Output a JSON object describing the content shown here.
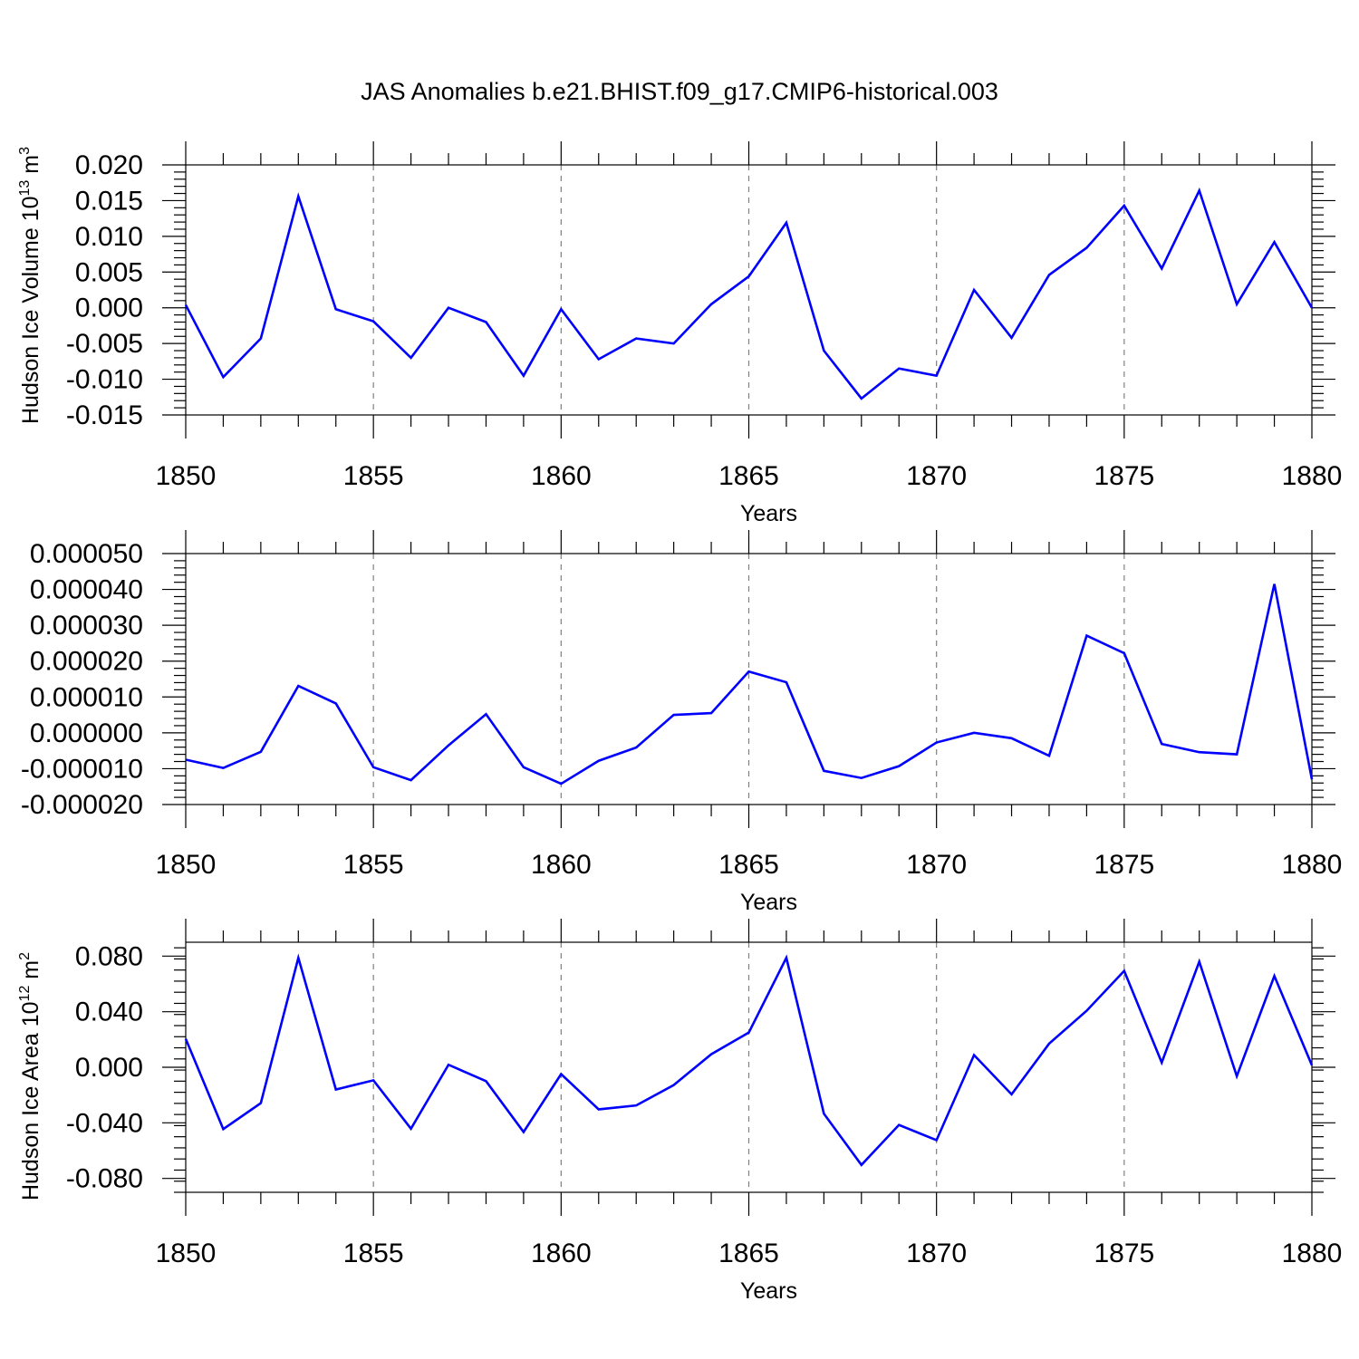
{
  "figure": {
    "title": "JAS Anomalies b.e21.BHIST.f09_g17.CMIP6-historical.003"
  },
  "colors": {
    "line": "#0000ff",
    "grid": "#808080",
    "frame": "#000000"
  },
  "chart_data": [
    {
      "type": "line",
      "title": "",
      "ylabel": {
        "main": "Hudson Ice Volume 10",
        "exp": "13",
        "unit": " m",
        "unit_exp": "3"
      },
      "xlabel": "Years",
      "xlim": [
        1850,
        1880
      ],
      "ylim": [
        -0.015,
        0.02
      ],
      "xticks": [
        1850,
        1855,
        1860,
        1865,
        1870,
        1875,
        1880
      ],
      "xtick_labels": [
        "1850",
        "1855",
        "1860",
        "1865",
        "1870",
        "1875",
        "1880"
      ],
      "yticks": [
        0.02,
        0.015,
        0.01,
        0.005,
        0.0,
        -0.005,
        -0.01,
        -0.015
      ],
      "ytick_labels": [
        "0.020",
        "0.015",
        "0.010",
        "0.005",
        "0.000",
        "-0.005",
        "-0.010",
        "-0.015"
      ],
      "grid": "vertical dashed at major x ticks",
      "series": [
        {
          "x": [
            1850,
            1851,
            1852,
            1853,
            1854,
            1855,
            1856,
            1857,
            1858,
            1859,
            1860,
            1861,
            1862,
            1863,
            1864,
            1865,
            1866,
            1867,
            1868,
            1869,
            1870,
            1871,
            1872,
            1873,
            1874,
            1875,
            1876,
            1877,
            1878,
            1879,
            1880
          ],
          "values": [
            0.0004,
            -0.0097,
            -0.0043,
            0.0156,
            -0.0002,
            -0.0019,
            -0.007,
            0.0,
            -0.002,
            -0.0095,
            -0.0002,
            -0.0072,
            -0.0043,
            -0.005,
            0.0005,
            0.0044,
            0.0119,
            -0.006,
            -0.0127,
            -0.0085,
            -0.0095,
            0.0025,
            -0.0042,
            0.0046,
            0.0084,
            0.0143,
            0.0055,
            0.0164,
            0.0005,
            0.0092,
            0.0
          ]
        }
      ]
    },
    {
      "type": "line",
      "title": "",
      "ylabel": {
        "main": "",
        "exp": "",
        "unit": "",
        "unit_exp": ""
      },
      "xlabel": "Years",
      "xlim": [
        1850,
        1880
      ],
      "ylim": [
        -2e-05,
        5e-05
      ],
      "xticks": [
        1850,
        1855,
        1860,
        1865,
        1870,
        1875,
        1880
      ],
      "xtick_labels": [
        "1850",
        "1855",
        "1860",
        "1865",
        "1870",
        "1875",
        "1880"
      ],
      "yticks": [
        5e-05,
        4e-05,
        3e-05,
        2e-05,
        1e-05,
        0.0,
        -1e-05,
        -2e-05
      ],
      "ytick_labels": [
        "0.000050",
        "0.000040",
        "0.000030",
        "0.000020",
        "0.000010",
        "0.000000",
        "-0.000010",
        "-0.000020"
      ],
      "grid": "vertical dashed at major x ticks",
      "series": [
        {
          "x": [
            1850,
            1851,
            1852,
            1853,
            1854,
            1855,
            1856,
            1857,
            1858,
            1859,
            1860,
            1861,
            1862,
            1863,
            1864,
            1865,
            1866,
            1867,
            1868,
            1869,
            1870,
            1871,
            1872,
            1873,
            1874,
            1875,
            1876,
            1877,
            1878,
            1879,
            1880
          ],
          "values": [
            -7.5e-06,
            -9.8e-06,
            -5.3e-06,
            1.31e-05,
            8.2e-06,
            -9.6e-06,
            -1.32e-05,
            -3.5e-06,
            5.2e-06,
            -9.6e-06,
            -1.42e-05,
            -7.8e-06,
            -4.1e-06,
            5e-06,
            5.5e-06,
            1.71e-05,
            1.41e-05,
            -1.06e-05,
            -1.26e-05,
            -9.3e-06,
            -2.7e-06,
            0.0,
            -1.5e-06,
            -6.4e-06,
            2.71e-05,
            2.22e-05,
            -3.1e-06,
            -5.4e-06,
            -6e-06,
            4.15e-05,
            -1.3e-05
          ]
        }
      ]
    },
    {
      "type": "line",
      "title": "",
      "ylabel": {
        "main": "Hudson Ice Area 10",
        "exp": "12",
        "unit": " m",
        "unit_exp": "2"
      },
      "xlabel": "Years",
      "xlim": [
        1850,
        1880
      ],
      "ylim": [
        -0.09,
        0.09
      ],
      "xticks": [
        1850,
        1855,
        1860,
        1865,
        1870,
        1875,
        1880
      ],
      "xtick_labels": [
        "1850",
        "1855",
        "1860",
        "1865",
        "1870",
        "1875",
        "1880"
      ],
      "yticks": [
        0.08,
        0.04,
        0.0,
        -0.04,
        -0.08
      ],
      "ytick_labels": [
        "0.080",
        "0.040",
        "0.000",
        "-0.040",
        "-0.080"
      ],
      "grid": "vertical dashed at major x ticks",
      "series": [
        {
          "x": [
            1850,
            1851,
            1852,
            1853,
            1854,
            1855,
            1856,
            1857,
            1858,
            1859,
            1860,
            1861,
            1862,
            1863,
            1864,
            1865,
            1866,
            1867,
            1868,
            1869,
            1870,
            1871,
            1872,
            1873,
            1874,
            1875,
            1876,
            1877,
            1878,
            1879,
            1880
          ],
          "values": [
            0.0205,
            -0.0445,
            -0.0258,
            0.0788,
            -0.016,
            -0.0094,
            -0.0442,
            0.0018,
            -0.01,
            -0.0466,
            -0.0049,
            -0.0303,
            -0.0275,
            -0.0128,
            0.0094,
            0.025,
            0.0788,
            -0.0334,
            -0.0703,
            -0.0415,
            -0.0525,
            0.0088,
            -0.0195,
            0.017,
            0.0407,
            0.0694,
            0.0034,
            0.076,
            -0.0064,
            0.0657,
            0.0015
          ]
        }
      ]
    }
  ]
}
